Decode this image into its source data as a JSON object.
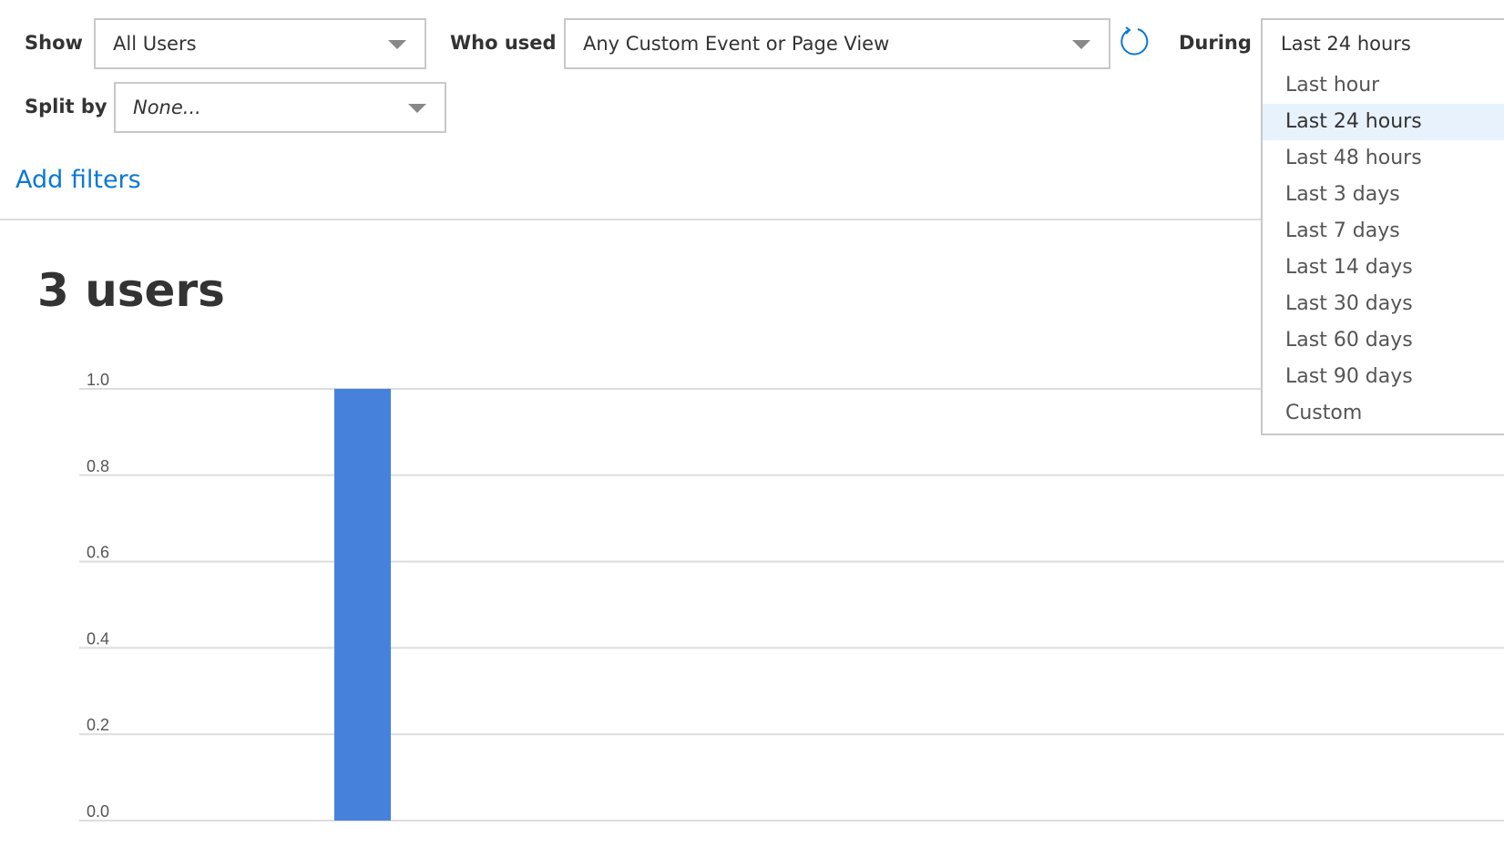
{
  "filters": {
    "show_label": "Show",
    "show_value": "All Users",
    "who_used_label": "Who used",
    "who_used_value": "Any Custom Event or Page View",
    "during_label": "During",
    "during_value": "Last 24 hours",
    "split_by_label": "Split by",
    "split_by_value": "None...",
    "add_filters": "Add filters",
    "refresh_icon": "refresh-icon"
  },
  "summary": {
    "count_text": "3 users"
  },
  "during_menu": {
    "items": [
      "Last hour",
      "Last 24 hours",
      "Last 48 hours",
      "Last 3 days",
      "Last 7 days",
      "Last 14 days",
      "Last 30 days",
      "Last 60 days",
      "Last 90 days",
      "Custom"
    ],
    "selected": "Last 24 hours"
  },
  "colors": {
    "accent": "#0a78d4",
    "bar": "#4682dc",
    "highlight": "#e8f2fc"
  },
  "chart_data": {
    "type": "bar",
    "values": [
      1.0
    ],
    "ylim": [
      0,
      1.0
    ],
    "yticks": [
      "0.0",
      "0.2",
      "0.4",
      "0.6",
      "0.8",
      "1.0"
    ],
    "grid": true,
    "title": "",
    "xlabel": "",
    "ylabel": ""
  }
}
